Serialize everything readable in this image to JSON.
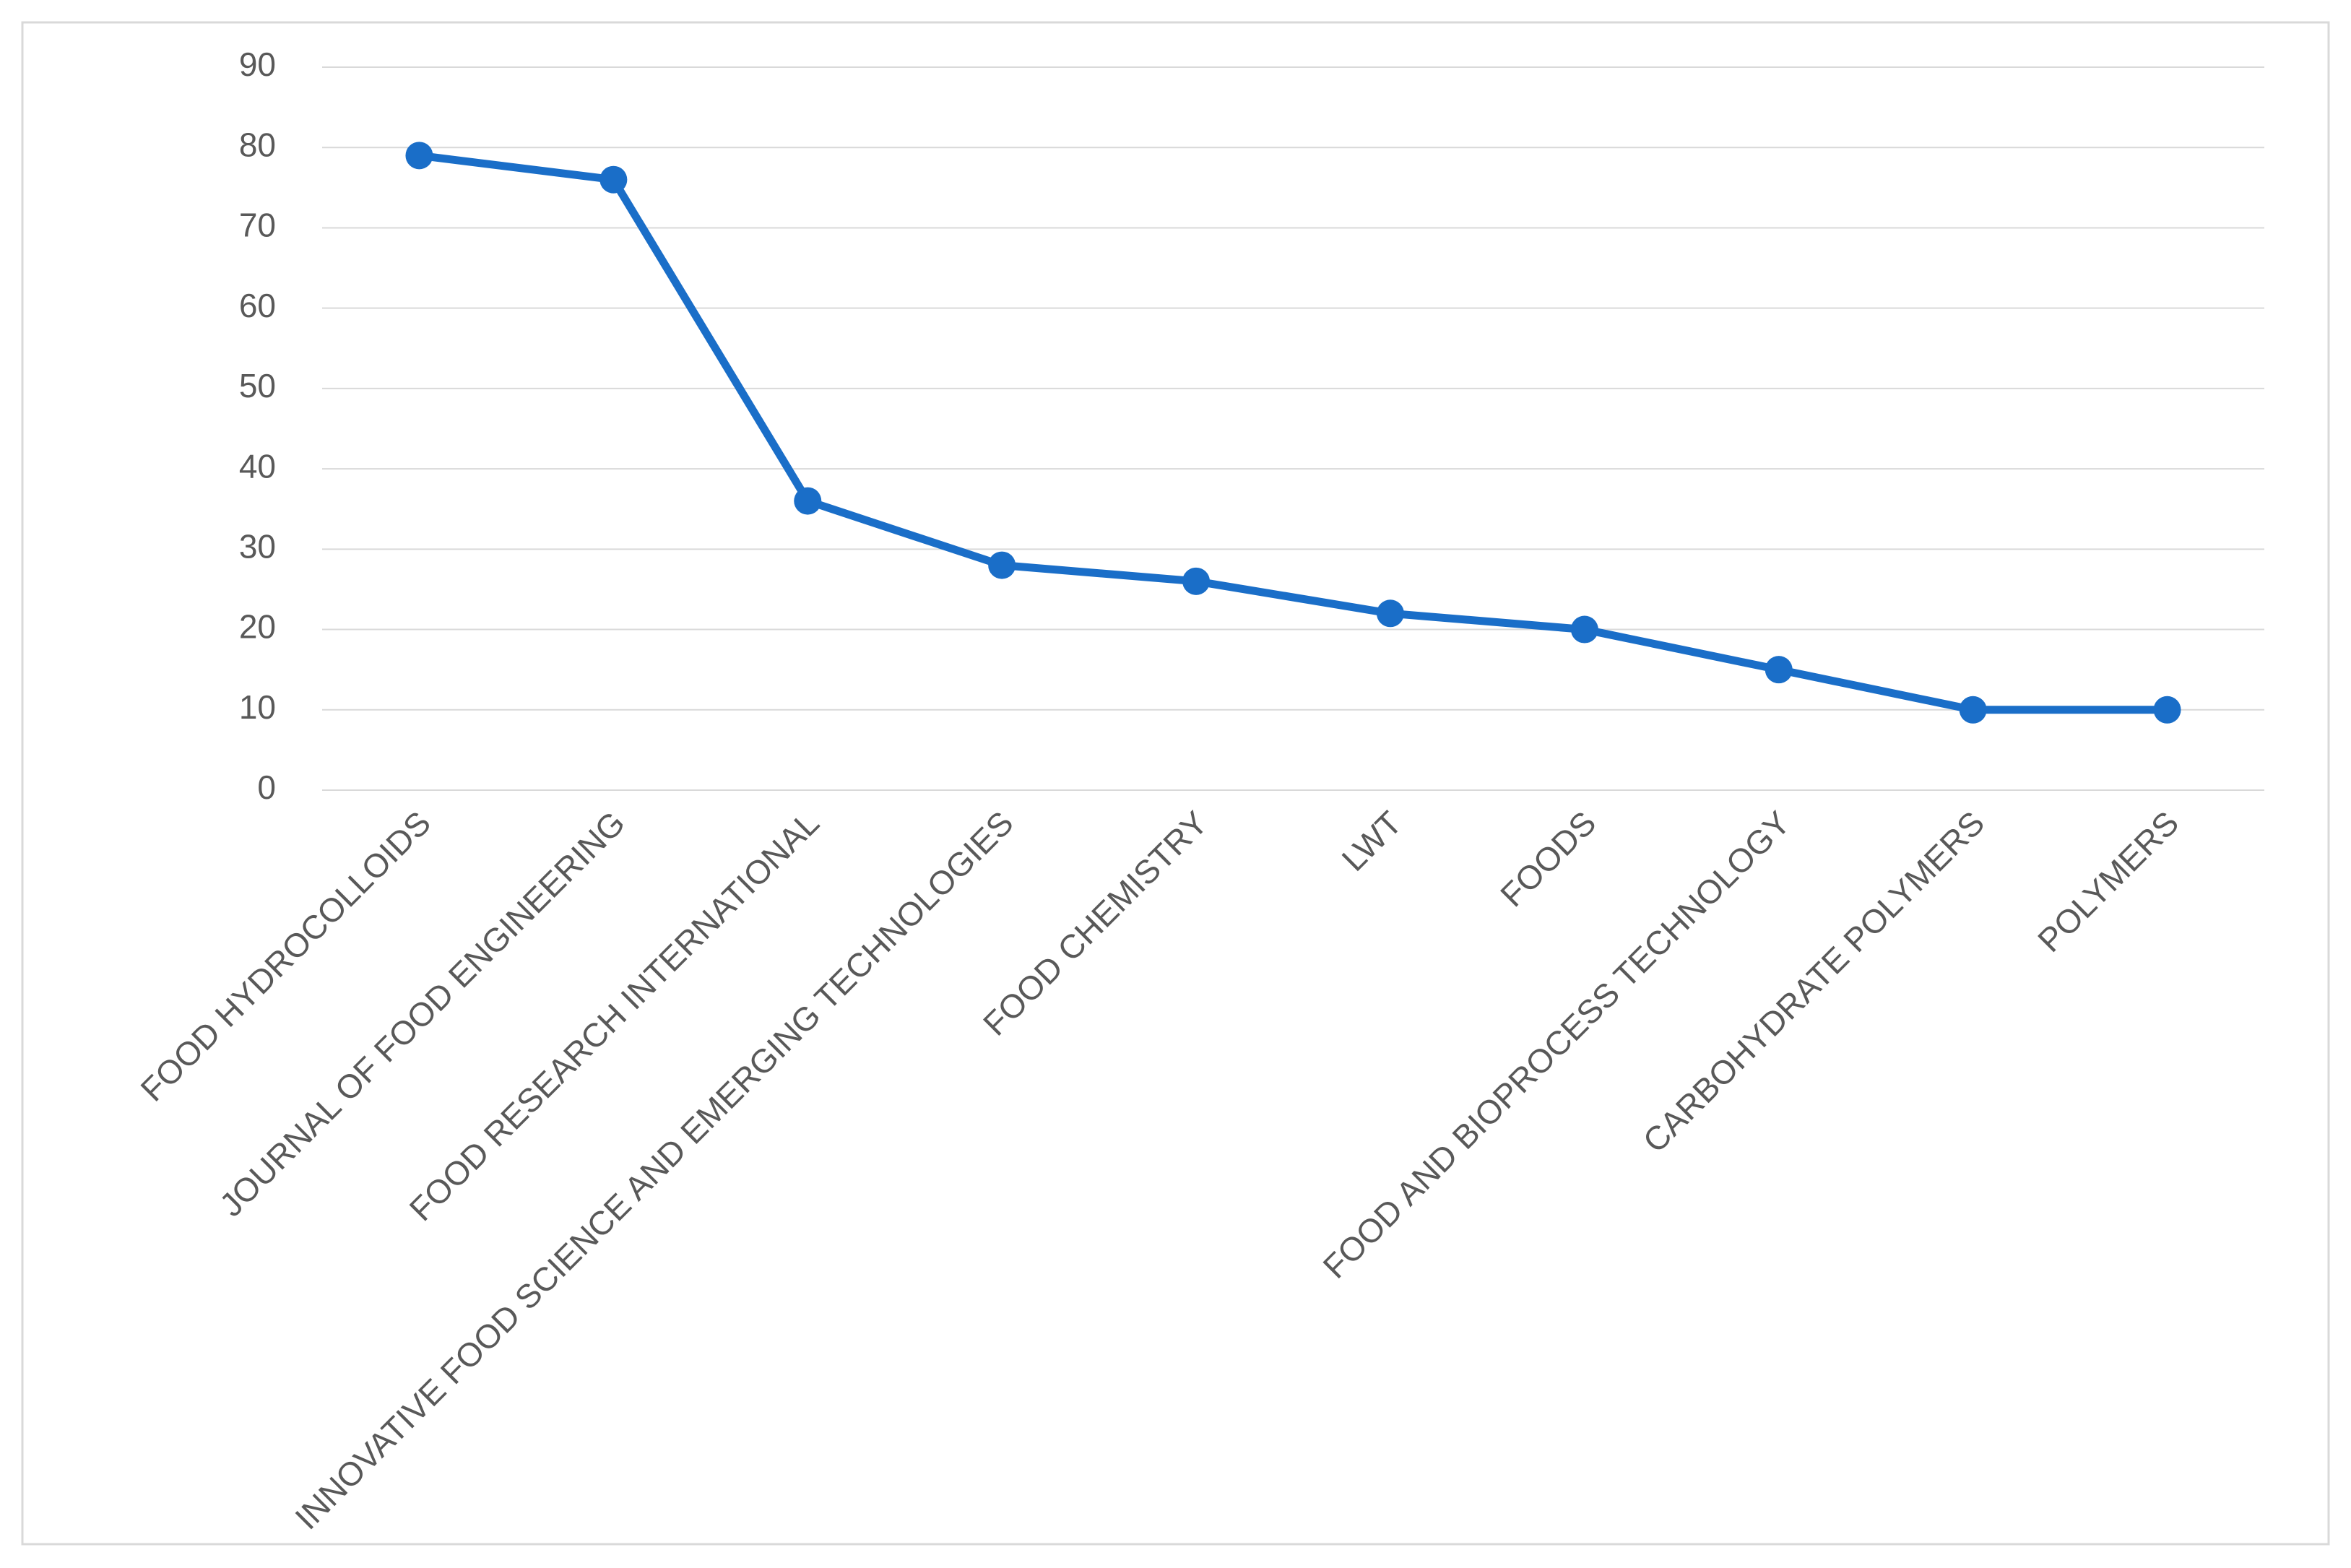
{
  "chart_data": {
    "type": "line",
    "categories": [
      "FOOD HYDROCOLLOIDS",
      "JOURNAL OF FOOD ENGINEERING",
      "FOOD RESEARCH INTERNATIONAL",
      "INNOVATIVE FOOD SCIENCE AND EMERGING TECHNOLOGIES",
      "FOOD CHEMISTRY",
      "LWT",
      "FOODS",
      "FOOD AND BIOPROCESS TECHNOLOGY",
      "CARBOHYDRATE POLYMERS",
      "POLYMERS"
    ],
    "values": [
      79,
      76,
      36,
      28,
      26,
      22,
      20,
      15,
      10,
      10
    ],
    "color": "#1a6ec8",
    "ylim": [
      0,
      90
    ],
    "yticks": [
      0,
      10,
      20,
      30,
      40,
      50,
      60,
      70,
      80,
      90
    ],
    "grid": true
  }
}
